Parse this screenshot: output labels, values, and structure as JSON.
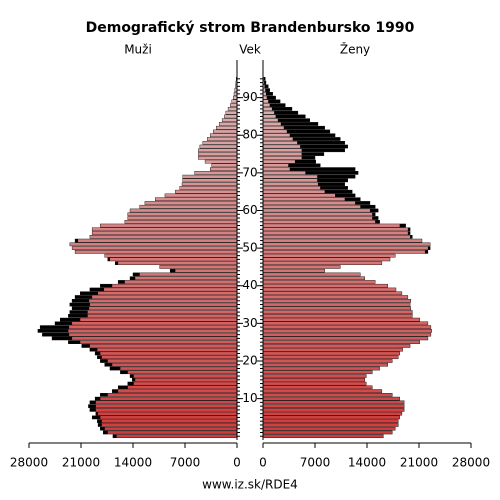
{
  "chart_data": {
    "type": "pyramid",
    "title": "Demografický strom Brandenbursko 1990",
    "left_label": "Muži",
    "center_label": "Vek",
    "right_label": "Ženy",
    "footer": "www.iz.sk/RDE4",
    "ages": [
      0,
      1,
      2,
      3,
      4,
      5,
      6,
      7,
      8,
      9,
      10,
      11,
      12,
      13,
      14,
      15,
      16,
      17,
      18,
      19,
      20,
      21,
      22,
      23,
      24,
      25,
      26,
      27,
      28,
      29,
      30,
      31,
      32,
      33,
      34,
      35,
      36,
      37,
      38,
      39,
      40,
      41,
      42,
      43,
      44,
      45,
      46,
      47,
      48,
      49,
      50,
      51,
      52,
      53,
      54,
      55,
      56,
      57,
      58,
      59,
      60,
      61,
      62,
      63,
      64,
      65,
      66,
      67,
      68,
      69,
      70,
      71,
      72,
      73,
      74,
      75,
      76,
      77,
      78,
      79,
      80,
      81,
      82,
      83,
      84,
      85,
      86,
      87,
      88,
      89,
      90,
      91,
      92,
      93,
      94,
      95
    ],
    "series": [
      {
        "name": "Muži",
        "side": "left",
        "values": [
          16700,
          18000,
          18400,
          18700,
          18800,
          19500,
          19000,
          19800,
          20000,
          19800,
          19100,
          18400,
          16800,
          16000,
          14700,
          14100,
          14400,
          15700,
          17100,
          17800,
          18400,
          18800,
          19100,
          19800,
          20900,
          22700,
          24900,
          26200,
          26800,
          26500,
          24500,
          23800,
          22700,
          22500,
          22200,
          22500,
          22200,
          21800,
          21100,
          19800,
          18400,
          16000,
          14400,
          14000,
          9000,
          10400,
          16400,
          17400,
          17800,
          21800,
          22200,
          22500,
          21800,
          19800,
          19500,
          19500,
          18400,
          15100,
          14700,
          14700,
          14400,
          13100,
          12400,
          11000,
          9700,
          8300,
          7700,
          7400,
          7300,
          7300,
          5700,
          3600,
          3400,
          4300,
          5200,
          5200,
          5200,
          5000,
          4600,
          4000,
          3600,
          3200,
          2800,
          2400,
          2000,
          1700,
          1500,
          1200,
          900,
          700,
          500,
          400,
          300,
          200,
          150,
          100
        ]
      },
      {
        "name": "Ženy",
        "side": "right",
        "values": [
          16200,
          17400,
          17800,
          18200,
          18200,
          18400,
          18700,
          19000,
          19000,
          19000,
          18400,
          17400,
          16000,
          14700,
          13900,
          13700,
          13900,
          14700,
          15700,
          16800,
          17400,
          18200,
          18400,
          18800,
          19800,
          21100,
          22200,
          22600,
          22700,
          22600,
          22200,
          21100,
          20100,
          20100,
          19900,
          19800,
          19900,
          19500,
          18700,
          17900,
          16800,
          15100,
          13700,
          13100,
          8300,
          10400,
          16000,
          17100,
          17800,
          22200,
          22500,
          22500,
          21400,
          20100,
          19800,
          19800,
          19200,
          15700,
          15500,
          15100,
          15500,
          15100,
          14400,
          13100,
          12400,
          12000,
          11400,
          11000,
          11400,
          12400,
          12800,
          12400,
          7700,
          7100,
          7000,
          8200,
          11000,
          11400,
          11000,
          10400,
          9700,
          9000,
          8300,
          7400,
          6300,
          5700,
          4700,
          3900,
          3000,
          2300,
          1700,
          1300,
          900,
          700,
          400,
          300
        ]
      }
    ],
    "color_young": "#d03a3a",
    "color_old": "#dcb8b8",
    "excess_color": "#000000",
    "xlim": [
      0,
      28000
    ],
    "xticks": [
      0,
      7000,
      14000,
      21000,
      28000
    ],
    "ylim": [
      -1,
      100
    ],
    "yticks": [
      10,
      20,
      30,
      40,
      50,
      60,
      70,
      80,
      90
    ]
  }
}
